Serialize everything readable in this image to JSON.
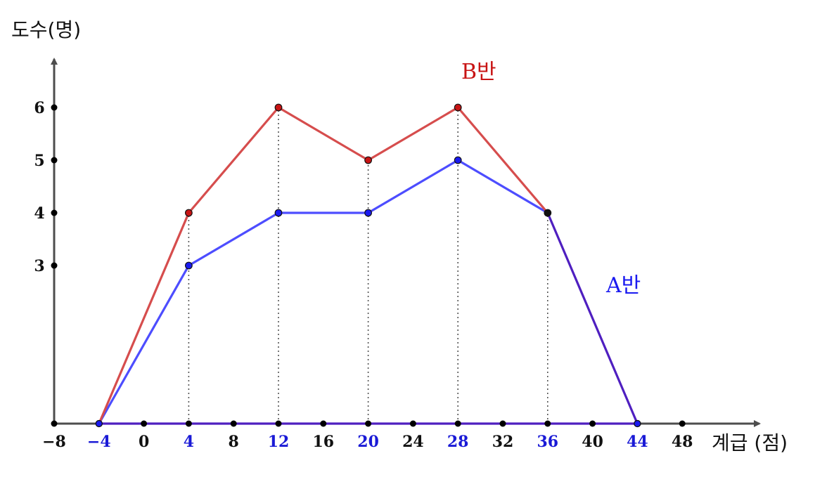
{
  "colors": {
    "axis": "#4d4d4d",
    "tick_dot": "#000000",
    "tick_label": "#111111",
    "highlight_label": "#1a1ad6",
    "series_a": "#4d4dff",
    "series_b": "#d64d4d",
    "series_a_point": "#1a1af0",
    "series_b_point": "#c81414",
    "overlap_line": "#4f1fc0",
    "guide": "#555555"
  },
  "chart_data": {
    "type": "line",
    "xlabel": "계급 (점)",
    "ylabel": "도수(명)",
    "xlim": [
      -8,
      50
    ],
    "ylim": [
      0,
      7
    ],
    "grid": false,
    "x_ticks": [
      {
        "value": -8,
        "label": "−8",
        "highlight": false
      },
      {
        "value": -4,
        "label": "−4",
        "highlight": true
      },
      {
        "value": 0,
        "label": "0",
        "highlight": false
      },
      {
        "value": 4,
        "label": "4",
        "highlight": true
      },
      {
        "value": 8,
        "label": "8",
        "highlight": false
      },
      {
        "value": 12,
        "label": "12",
        "highlight": true
      },
      {
        "value": 16,
        "label": "16",
        "highlight": false
      },
      {
        "value": 20,
        "label": "20",
        "highlight": true
      },
      {
        "value": 24,
        "label": "24",
        "highlight": false
      },
      {
        "value": 28,
        "label": "28",
        "highlight": true
      },
      {
        "value": 32,
        "label": "32",
        "highlight": false
      },
      {
        "value": 36,
        "label": "36",
        "highlight": true
      },
      {
        "value": 40,
        "label": "40",
        "highlight": false
      },
      {
        "value": 44,
        "label": "44",
        "highlight": true
      },
      {
        "value": 48,
        "label": "48",
        "highlight": false
      }
    ],
    "y_ticks": [
      {
        "value": 3,
        "label": "3"
      },
      {
        "value": 4,
        "label": "4"
      },
      {
        "value": 5,
        "label": "5"
      },
      {
        "value": 6,
        "label": "6"
      }
    ],
    "series": [
      {
        "name": "A반",
        "key": "a",
        "x": [
          -4,
          4,
          12,
          20,
          28,
          36,
          44
        ],
        "values": [
          0,
          3,
          4,
          4,
          5,
          4,
          0
        ]
      },
      {
        "name": "B반",
        "key": "b",
        "x": [
          -4,
          4,
          12,
          20,
          28,
          36,
          44
        ],
        "values": [
          0,
          4,
          6,
          5,
          6,
          4,
          0
        ]
      }
    ],
    "guide_lines_x": [
      4,
      12,
      20,
      28,
      36
    ]
  }
}
